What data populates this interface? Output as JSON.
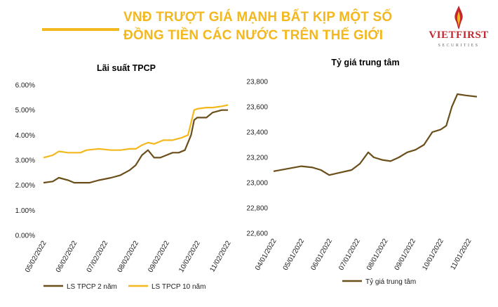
{
  "header": {
    "line1": "VNĐ TRƯỢT GIÁ MẠNH BẤT KỊP MỘT SỐ",
    "line2": "ĐỒNG TIỀN CÁC NƯỚC TRÊN THẾ GIỚI",
    "accent": "#f3b81d"
  },
  "logo": {
    "name": "VIETFIRST",
    "sub": "SECURITIES",
    "color": "#c1272d"
  },
  "chart_data": [
    {
      "type": "line",
      "title": "Lãi suất TPCP",
      "x": [
        "05/02/2022",
        "06/02/2022",
        "07/02/2022",
        "08/02/2022",
        "09/02/2022",
        "10/02/2022",
        "11/02/2022"
      ],
      "y_ticks": [
        "0.00%",
        "1.00%",
        "2.00%",
        "3.00%",
        "4.00%",
        "5.00%",
        "6.00%"
      ],
      "ylim": [
        0,
        6
      ],
      "grid": false,
      "legend": "bottom",
      "series": [
        {
          "name": "LS TPCP 2 năm",
          "color": "#6b4f1b",
          "points": [
            [
              0,
              2.1
            ],
            [
              0.3,
              2.15
            ],
            [
              0.5,
              2.3
            ],
            [
              0.8,
              2.2
            ],
            [
              1.0,
              2.1
            ],
            [
              1.5,
              2.1
            ],
            [
              1.8,
              2.2
            ],
            [
              2.2,
              2.3
            ],
            [
              2.5,
              2.4
            ],
            [
              2.8,
              2.6
            ],
            [
              3.0,
              2.8
            ],
            [
              3.2,
              3.2
            ],
            [
              3.4,
              3.4
            ],
            [
              3.6,
              3.1
            ],
            [
              3.8,
              3.1
            ],
            [
              4.0,
              3.2
            ],
            [
              4.2,
              3.3
            ],
            [
              4.4,
              3.3
            ],
            [
              4.6,
              3.4
            ],
            [
              4.8,
              4.0
            ],
            [
              4.9,
              4.6
            ],
            [
              5.0,
              4.7
            ],
            [
              5.3,
              4.7
            ],
            [
              5.5,
              4.9
            ],
            [
              5.8,
              5.0
            ],
            [
              6.0,
              5.0
            ]
          ]
        },
        {
          "name": "LS TPCP 10 năm",
          "color": "#f3b81d",
          "points": [
            [
              0,
              3.1
            ],
            [
              0.3,
              3.2
            ],
            [
              0.5,
              3.35
            ],
            [
              0.8,
              3.3
            ],
            [
              1.0,
              3.3
            ],
            [
              1.2,
              3.3
            ],
            [
              1.4,
              3.4
            ],
            [
              1.8,
              3.45
            ],
            [
              2.2,
              3.4
            ],
            [
              2.5,
              3.4
            ],
            [
              2.8,
              3.45
            ],
            [
              3.0,
              3.45
            ],
            [
              3.2,
              3.6
            ],
            [
              3.4,
              3.7
            ],
            [
              3.6,
              3.65
            ],
            [
              3.9,
              3.8
            ],
            [
              4.2,
              3.8
            ],
            [
              4.5,
              3.9
            ],
            [
              4.7,
              4.0
            ],
            [
              4.8,
              4.5
            ],
            [
              4.9,
              5.0
            ],
            [
              5.0,
              5.05
            ],
            [
              5.3,
              5.1
            ],
            [
              5.5,
              5.1
            ],
            [
              5.8,
              5.15
            ],
            [
              6.0,
              5.2
            ]
          ]
        }
      ]
    },
    {
      "type": "line",
      "title": "Tỷ giá trung tâm",
      "x": [
        "04/01/2022",
        "05/01/2022",
        "06/01/2022",
        "07/01/2022",
        "08/01/2022",
        "09/01/2022",
        "10/01/2022",
        "11/01/2022"
      ],
      "y_ticks": [
        "22,600",
        "22,800",
        "23,000",
        "23,200",
        "23,400",
        "23,600",
        "23,800"
      ],
      "ylim": [
        22600,
        23800
      ],
      "grid": false,
      "legend": "bottom",
      "series": [
        {
          "name": "Tỷ giá trung tâm",
          "color": "#6b4f1b",
          "points": [
            [
              0,
              23090
            ],
            [
              0.5,
              23110
            ],
            [
              1.0,
              23130
            ],
            [
              1.4,
              23120
            ],
            [
              1.7,
              23100
            ],
            [
              2.0,
              23060
            ],
            [
              2.4,
              23080
            ],
            [
              2.8,
              23100
            ],
            [
              3.1,
              23150
            ],
            [
              3.4,
              23240
            ],
            [
              3.6,
              23200
            ],
            [
              3.9,
              23180
            ],
            [
              4.2,
              23170
            ],
            [
              4.5,
              23200
            ],
            [
              4.8,
              23240
            ],
            [
              5.1,
              23260
            ],
            [
              5.4,
              23300
            ],
            [
              5.7,
              23400
            ],
            [
              6.0,
              23420
            ],
            [
              6.2,
              23450
            ],
            [
              6.4,
              23600
            ],
            [
              6.6,
              23700
            ],
            [
              6.9,
              23690
            ],
            [
              7.3,
              23680
            ]
          ]
        }
      ]
    }
  ]
}
